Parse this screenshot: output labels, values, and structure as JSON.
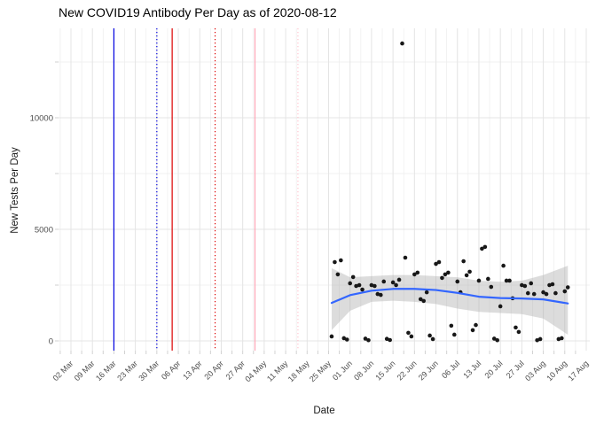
{
  "chart_data": {
    "type": "scatter",
    "title": "New COVID19 Antibody Per Day as of 2020-08-12",
    "xlabel": "Date",
    "ylabel": "New Tests Per Day",
    "legend": "none",
    "grid": true,
    "x_start_date": "2020-03-02",
    "x_tick_labels": [
      "02 Mar",
      "09 Mar",
      "16 Mar",
      "23 Mar",
      "30 Mar",
      "06 Apr",
      "13 Apr",
      "20 Apr",
      "27 Apr",
      "04 May",
      "11 May",
      "18 May",
      "25 May",
      "01 Jun",
      "08 Jun",
      "15 Jun",
      "22 Jun",
      "29 Jun",
      "06 Jul",
      "13 Jul",
      "20 Jul",
      "27 Jul",
      "03 Aug",
      "10 Aug",
      "17 Aug"
    ],
    "y_ticks": [
      0,
      5000,
      10000
    ],
    "y_minor_ticks": [
      2500,
      7500,
      12500
    ],
    "ylim": [
      -450,
      14100
    ],
    "colors": {
      "point": "#181818",
      "smooth_line": "#3366FF",
      "ribbon": "#A8A8A8",
      "grid_major": "#E4E4E4",
      "grid_minor": "#EDEDED",
      "tick_mark": "#D2D2D2",
      "tick_text": "#4D4D4D"
    },
    "event_vlines": [
      {
        "date": "2020-03-16",
        "color": "#0000E0",
        "style": "solid"
      },
      {
        "date": "2020-03-30",
        "color": "#0000E0",
        "style": "dotted"
      },
      {
        "date": "2020-04-04",
        "color": "#DD0000",
        "style": "solid"
      },
      {
        "date": "2020-04-18",
        "color": "#DD0000",
        "style": "dotted"
      },
      {
        "date": "2020-05-01",
        "color": "#FFA6B6",
        "style": "solid"
      },
      {
        "date": "2020-05-15",
        "color": "#FFC4CE",
        "style": "dotted"
      }
    ],
    "points": [
      [
        "2020-05-26",
        200
      ],
      [
        "2020-05-27",
        3530
      ],
      [
        "2020-05-28",
        2980
      ],
      [
        "2020-05-29",
        3610
      ],
      [
        "2020-05-30",
        120
      ],
      [
        "2020-05-31",
        60
      ],
      [
        "2020-06-01",
        2580
      ],
      [
        "2020-06-02",
        2860
      ],
      [
        "2020-06-03",
        2460
      ],
      [
        "2020-06-04",
        2500
      ],
      [
        "2020-06-05",
        2300
      ],
      [
        "2020-06-06",
        100
      ],
      [
        "2020-06-07",
        30
      ],
      [
        "2020-06-08",
        2500
      ],
      [
        "2020-06-09",
        2460
      ],
      [
        "2020-06-10",
        2100
      ],
      [
        "2020-06-11",
        2060
      ],
      [
        "2020-06-12",
        2660
      ],
      [
        "2020-06-13",
        90
      ],
      [
        "2020-06-14",
        40
      ],
      [
        "2020-06-15",
        2620
      ],
      [
        "2020-06-16",
        2500
      ],
      [
        "2020-06-17",
        2740
      ],
      [
        "2020-06-18",
        13330
      ],
      [
        "2020-06-19",
        3730
      ],
      [
        "2020-06-20",
        360
      ],
      [
        "2020-06-21",
        200
      ],
      [
        "2020-06-22",
        2980
      ],
      [
        "2020-06-23",
        3060
      ],
      [
        "2020-06-24",
        1870
      ],
      [
        "2020-06-25",
        1790
      ],
      [
        "2020-06-26",
        2180
      ],
      [
        "2020-06-27",
        240
      ],
      [
        "2020-06-28",
        80
      ],
      [
        "2020-06-29",
        3450
      ],
      [
        "2020-06-30",
        3530
      ],
      [
        "2020-07-01",
        2820
      ],
      [
        "2020-07-02",
        2980
      ],
      [
        "2020-07-03",
        3060
      ],
      [
        "2020-07-04",
        680
      ],
      [
        "2020-07-05",
        280
      ],
      [
        "2020-07-06",
        2660
      ],
      [
        "2020-07-07",
        2180
      ],
      [
        "2020-07-08",
        3570
      ],
      [
        "2020-07-09",
        2940
      ],
      [
        "2020-07-10",
        3100
      ],
      [
        "2020-07-11",
        480
      ],
      [
        "2020-07-12",
        710
      ],
      [
        "2020-07-13",
        2700
      ],
      [
        "2020-07-14",
        4130
      ],
      [
        "2020-07-15",
        4210
      ],
      [
        "2020-07-16",
        2780
      ],
      [
        "2020-07-17",
        2420
      ],
      [
        "2020-07-18",
        100
      ],
      [
        "2020-07-19",
        30
      ],
      [
        "2020-07-20",
        1550
      ],
      [
        "2020-07-21",
        3370
      ],
      [
        "2020-07-22",
        2700
      ],
      [
        "2020-07-23",
        2700
      ],
      [
        "2020-07-24",
        1910
      ],
      [
        "2020-07-25",
        600
      ],
      [
        "2020-07-26",
        400
      ],
      [
        "2020-07-27",
        2500
      ],
      [
        "2020-07-28",
        2460
      ],
      [
        "2020-07-29",
        2140
      ],
      [
        "2020-07-30",
        2580
      ],
      [
        "2020-07-31",
        2100
      ],
      [
        "2020-08-01",
        30
      ],
      [
        "2020-08-02",
        80
      ],
      [
        "2020-08-03",
        2180
      ],
      [
        "2020-08-04",
        2100
      ],
      [
        "2020-08-05",
        2500
      ],
      [
        "2020-08-06",
        2540
      ],
      [
        "2020-08-07",
        2140
      ],
      [
        "2020-08-08",
        80
      ],
      [
        "2020-08-09",
        120
      ],
      [
        "2020-08-10",
        2220
      ],
      [
        "2020-08-11",
        2400
      ]
    ],
    "smooth": {
      "dates": [
        "2020-05-26",
        "2020-06-01",
        "2020-06-08",
        "2020-06-15",
        "2020-06-22",
        "2020-06-29",
        "2020-07-06",
        "2020-07-13",
        "2020-07-20",
        "2020-07-27",
        "2020-08-03",
        "2020-08-11"
      ],
      "values": [
        1700,
        2050,
        2250,
        2330,
        2330,
        2280,
        2150,
        1980,
        1920,
        1900,
        1860,
        1680
      ],
      "ribbon_lower": [
        480,
        1350,
        1750,
        1800,
        1750,
        1650,
        1450,
        1300,
        1250,
        1200,
        1000,
        280
      ],
      "ribbon_upper": [
        3260,
        2850,
        2900,
        2950,
        2950,
        2900,
        2850,
        2700,
        2650,
        2700,
        2950,
        3370
      ]
    }
  }
}
